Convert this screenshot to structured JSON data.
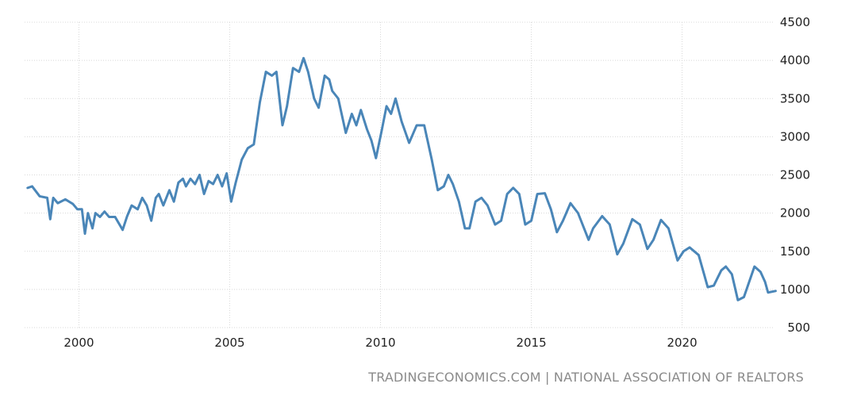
{
  "chart_data": {
    "type": "line",
    "source": "TRADINGECONOMICS.COM | NATIONAL ASSOCIATION OF REALTORS",
    "x": [
      1998.3,
      1998.45,
      1998.7,
      1998.95,
      1999.05,
      1999.15,
      1999.3,
      1999.55,
      1999.8,
      1999.95,
      2000.1,
      2000.2,
      2000.3,
      2000.45,
      2000.55,
      2000.7,
      2000.85,
      2001.0,
      2001.2,
      2001.45,
      2001.6,
      2001.75,
      2001.95,
      2002.1,
      2002.25,
      2002.4,
      2002.55,
      2002.65,
      2002.8,
      2003.0,
      2003.15,
      2003.3,
      2003.45,
      2003.55,
      2003.7,
      2003.85,
      2004.0,
      2004.15,
      2004.3,
      2004.45,
      2004.6,
      2004.75,
      2004.9,
      2005.05,
      2005.2,
      2005.4,
      2005.6,
      2005.8,
      2006.0,
      2006.2,
      2006.4,
      2006.55,
      2006.75,
      2006.9,
      2007.1,
      2007.3,
      2007.45,
      2007.6,
      2007.8,
      2007.95,
      2008.15,
      2008.3,
      2008.4,
      2008.6,
      2008.85,
      2009.05,
      2009.2,
      2009.35,
      2009.55,
      2009.7,
      2009.85,
      2010.05,
      2010.2,
      2010.35,
      2010.5,
      2010.7,
      2010.95,
      2011.2,
      2011.45,
      2011.7,
      2011.9,
      2012.1,
      2012.25,
      2012.4,
      2012.6,
      2012.8,
      2012.95,
      2013.15,
      2013.35,
      2013.55,
      2013.8,
      2014.0,
      2014.2,
      2014.4,
      2014.6,
      2014.8,
      2015.0,
      2015.2,
      2015.45,
      2015.65,
      2015.85,
      2016.05,
      2016.3,
      2016.55,
      2016.9,
      2017.05,
      2017.35,
      2017.6,
      2017.85,
      2018.05,
      2018.35,
      2018.6,
      2018.85,
      2019.05,
      2019.3,
      2019.55,
      2019.85,
      2020.05,
      2020.25,
      2020.55,
      2020.85,
      2021.05,
      2021.3,
      2021.45,
      2021.65,
      2021.85,
      2022.05,
      2022.4,
      2022.6,
      2022.75,
      2022.85,
      2023.1
    ],
    "series": [
      {
        "color": "#4a86b8",
        "values": [
          2330,
          2350,
          2220,
          2200,
          1920,
          2200,
          2130,
          2180,
          2120,
          2050,
          2050,
          1730,
          2000,
          1800,
          2000,
          1950,
          2020,
          1950,
          1950,
          1780,
          1960,
          2100,
          2050,
          2200,
          2100,
          1900,
          2200,
          2250,
          2100,
          2300,
          2150,
          2400,
          2450,
          2350,
          2450,
          2380,
          2500,
          2250,
          2420,
          2380,
          2500,
          2350,
          2520,
          2150,
          2400,
          2700,
          2850,
          2900,
          3450,
          3850,
          3800,
          3850,
          3150,
          3400,
          3900,
          3850,
          4030,
          3850,
          3500,
          3380,
          3800,
          3750,
          3600,
          3500,
          3050,
          3300,
          3150,
          3350,
          3100,
          2950,
          2720,
          3100,
          3400,
          3300,
          3500,
          3200,
          2920,
          3150,
          3150,
          2700,
          2300,
          2350,
          2500,
          2380,
          2150,
          1800,
          1800,
          2150,
          2200,
          2100,
          1850,
          1900,
          2250,
          2330,
          2250,
          1850,
          1900,
          2250,
          2260,
          2050,
          1750,
          1900,
          2130,
          2000,
          1650,
          1800,
          1960,
          1850,
          1460,
          1600,
          1920,
          1850,
          1530,
          1650,
          1910,
          1800,
          1380,
          1500,
          1550,
          1450,
          1030,
          1050,
          1250,
          1300,
          1200,
          860,
          900,
          1300,
          1230,
          1100,
          960,
          980
        ]
      }
    ],
    "xlim": [
      1998.2,
      2023.3
    ],
    "xticks": [
      2000,
      2005,
      2010,
      2015,
      2020
    ],
    "ylim": [
      500,
      4500
    ],
    "yticks": [
      500,
      1000,
      1500,
      2000,
      2500,
      3000,
      3500,
      4000,
      4500
    ],
    "grid": true
  }
}
